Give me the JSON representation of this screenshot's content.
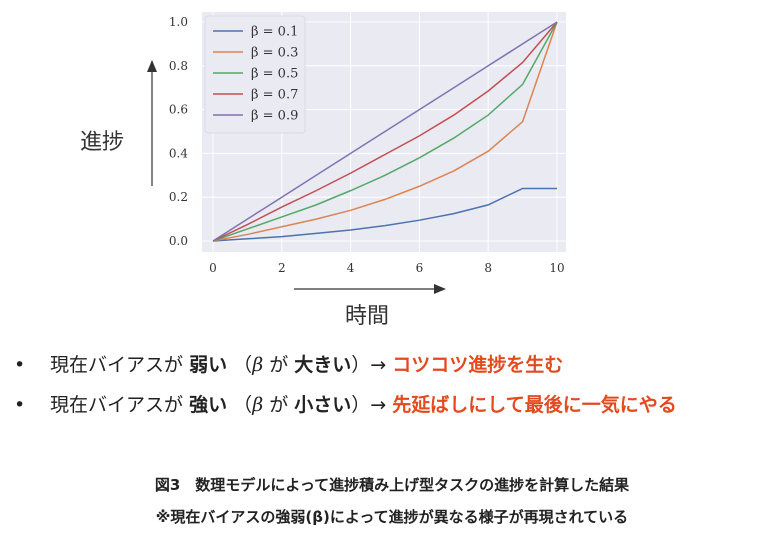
{
  "chart_data": {
    "type": "line",
    "x": [
      0,
      1,
      2,
      3,
      4,
      5,
      6,
      7,
      8,
      9,
      10
    ],
    "xlim": [
      0,
      10
    ],
    "ylim": [
      0,
      1.0
    ],
    "xticks": [
      "0",
      "2",
      "4",
      "6",
      "8",
      "10"
    ],
    "yticks": [
      "0.0",
      "0.2",
      "0.4",
      "0.6",
      "0.8",
      "1.0"
    ],
    "grid": true,
    "legend_position": "top-left",
    "xlabel": "時間",
    "ylabel": "進捗",
    "series": [
      {
        "name": "β = 0.1",
        "color": "#4c72b0",
        "values": [
          0.0,
          0.01,
          0.02,
          0.035,
          0.05,
          0.07,
          0.095,
          0.125,
          0.165,
          0.24,
          0.24
        ]
      },
      {
        "name": "β = 0.3",
        "color": "#dd8452",
        "values": [
          0.0,
          0.03,
          0.065,
          0.1,
          0.14,
          0.19,
          0.25,
          0.32,
          0.41,
          0.545,
          1.0
        ]
      },
      {
        "name": "β = 0.5",
        "color": "#55a868",
        "values": [
          0.0,
          0.055,
          0.11,
          0.165,
          0.23,
          0.3,
          0.38,
          0.47,
          0.575,
          0.715,
          1.0
        ]
      },
      {
        "name": "β = 0.7",
        "color": "#c44e52",
        "values": [
          0.0,
          0.075,
          0.155,
          0.23,
          0.31,
          0.395,
          0.48,
          0.575,
          0.685,
          0.815,
          1.0
        ]
      },
      {
        "name": "β = 0.9",
        "color": "#8172b3",
        "values": [
          0.0,
          0.1,
          0.2,
          0.3,
          0.4,
          0.5,
          0.6,
          0.7,
          0.8,
          0.9,
          1.0
        ]
      }
    ]
  },
  "bullets": [
    {
      "dot": "•",
      "prefix": "現在バイアスが",
      "weak": "弱い",
      "paren_open": "（",
      "beta": "β",
      "ga": "が",
      "adj": "大きい",
      "paren_close": "）→",
      "result": "コツコツ進捗を生む"
    },
    {
      "dot": "•",
      "prefix": "現在バイアスが",
      "weak": "強い",
      "paren_open": "（",
      "beta": "β",
      "ga": "が",
      "adj": "小さい",
      "paren_close": "）→",
      "result": "先延ばしにして最後に一気にやる"
    }
  ],
  "caption": {
    "line1": "図3　数理モデルによって進捗積み上げ型タスクの進捗を計算した結果",
    "line2": "※現在バイアスの強弱(β)によって進捗が異なる様子が再現されている"
  }
}
